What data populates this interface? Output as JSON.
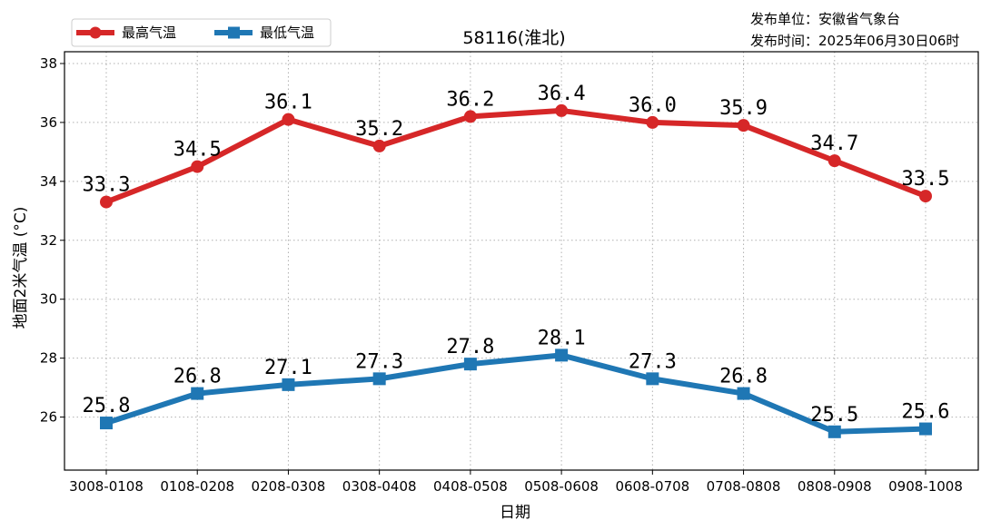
{
  "chart_data": {
    "type": "line",
    "title": "58116(淮北)",
    "publisher": "发布单位：安徽省气象台",
    "publish_time": "发布时间：2025年06月30日06时",
    "xlabel": "日期",
    "ylabel": "地面2米气温 (°C)",
    "categories": [
      "3008-0108",
      "0108-0208",
      "0208-0308",
      "0308-0408",
      "0408-0508",
      "0508-0608",
      "0608-0708",
      "0708-0808",
      "0808-0908",
      "0908-1008"
    ],
    "ylim": [
      24.2,
      38.4
    ],
    "yticks": [
      26,
      28,
      30,
      32,
      34,
      36,
      38
    ],
    "grid": true,
    "legend_position": "top-left",
    "series": [
      {
        "name": "最高气温",
        "color": "#d62728",
        "marker": "circle",
        "values": [
          33.3,
          34.5,
          36.1,
          35.2,
          36.2,
          36.4,
          36.0,
          35.9,
          34.7,
          33.5
        ],
        "labels": [
          "33.3",
          "34.5",
          "36.1",
          "35.2",
          "36.2",
          "36.4",
          "36.0",
          "35.9",
          "34.7",
          "33.5"
        ]
      },
      {
        "name": "最低气温",
        "color": "#1f77b4",
        "marker": "square",
        "values": [
          25.8,
          26.8,
          27.1,
          27.3,
          27.8,
          28.1,
          27.3,
          26.8,
          25.5,
          25.6
        ],
        "labels": [
          "25.8",
          "26.8",
          "27.1",
          "27.3",
          "27.8",
          "28.1",
          "27.3",
          "26.8",
          "25.5",
          "25.6"
        ]
      }
    ]
  }
}
